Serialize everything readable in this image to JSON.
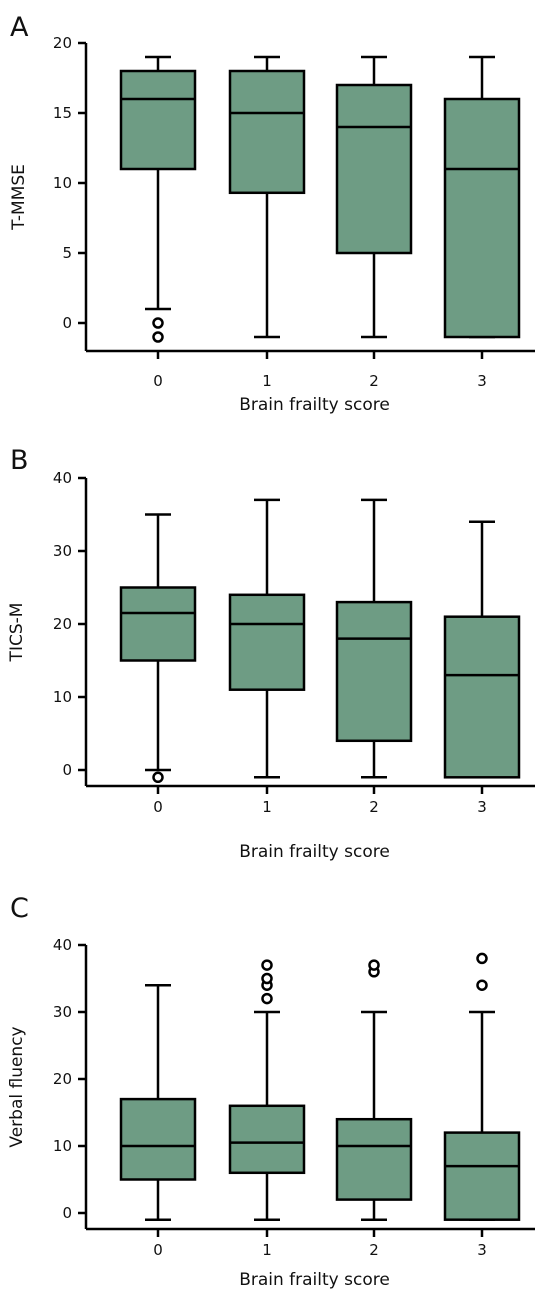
{
  "chart_data": [
    {
      "type": "box",
      "panel": "A",
      "xlabel": "Brain frailty score",
      "ylabel": "T-MMSE",
      "ylim": [
        -2,
        20
      ],
      "yticks": [
        0,
        5,
        10,
        15,
        20
      ],
      "categories": [
        "0",
        "1",
        "2",
        "3"
      ],
      "boxes": [
        {
          "category": "0",
          "whisker_low": 1,
          "q1": 11,
          "median": 16,
          "q3": 18,
          "whisker_high": 19,
          "outliers": [
            0,
            -1
          ]
        },
        {
          "category": "1",
          "whisker_low": -1,
          "q1": 9.3,
          "median": 15,
          "q3": 18,
          "whisker_high": 19,
          "outliers": []
        },
        {
          "category": "2",
          "whisker_low": -1,
          "q1": 5,
          "median": 14,
          "q3": 17,
          "whisker_high": 19,
          "outliers": []
        },
        {
          "category": "3",
          "whisker_low": -1,
          "q1": -1,
          "median": 11,
          "q3": 16,
          "whisker_high": 19,
          "outliers": []
        }
      ]
    },
    {
      "type": "box",
      "panel": "B",
      "xlabel": "Brain frailty score",
      "ylabel": "TICS-M",
      "ylim": [
        -2,
        40
      ],
      "yticks": [
        0,
        10,
        20,
        30,
        40
      ],
      "categories": [
        "0",
        "1",
        "2",
        "3"
      ],
      "boxes": [
        {
          "category": "0",
          "whisker_low": 0,
          "q1": 15,
          "median": 21.5,
          "q3": 25,
          "whisker_high": 35,
          "outliers": [
            -1
          ]
        },
        {
          "category": "1",
          "whisker_low": -1,
          "q1": 11,
          "median": 20,
          "q3": 24,
          "whisker_high": 37,
          "outliers": []
        },
        {
          "category": "2",
          "whisker_low": -1,
          "q1": 4,
          "median": 18,
          "q3": 23,
          "whisker_high": 37,
          "outliers": []
        },
        {
          "category": "3",
          "whisker_low": -1,
          "q1": -1,
          "median": 13,
          "q3": 21,
          "whisker_high": 34,
          "outliers": []
        }
      ]
    },
    {
      "type": "box",
      "panel": "C",
      "xlabel": "Brain frailty score",
      "ylabel": "Verbal fluency",
      "ylim": [
        -2,
        40
      ],
      "yticks": [
        0,
        10,
        20,
        30,
        40
      ],
      "categories": [
        "0",
        "1",
        "2",
        "3"
      ],
      "boxes": [
        {
          "category": "0",
          "whisker_low": -1,
          "q1": 5,
          "median": 10,
          "q3": 17,
          "whisker_high": 34,
          "outliers": []
        },
        {
          "category": "1",
          "whisker_low": -1,
          "q1": 6,
          "median": 10.5,
          "q3": 16,
          "whisker_high": 30,
          "outliers": [
            32,
            34,
            35,
            37
          ]
        },
        {
          "category": "2",
          "whisker_low": -1,
          "q1": 2,
          "median": 10,
          "q3": 14,
          "whisker_high": 30,
          "outliers": [
            36,
            37
          ]
        },
        {
          "category": "3",
          "whisker_low": -1,
          "q1": -1,
          "median": 7,
          "q3": 12,
          "whisker_high": 30,
          "outliers": [
            34,
            38
          ]
        }
      ]
    }
  ],
  "colors": {
    "box_fill": "#6e9c84",
    "stroke": "#000000"
  }
}
